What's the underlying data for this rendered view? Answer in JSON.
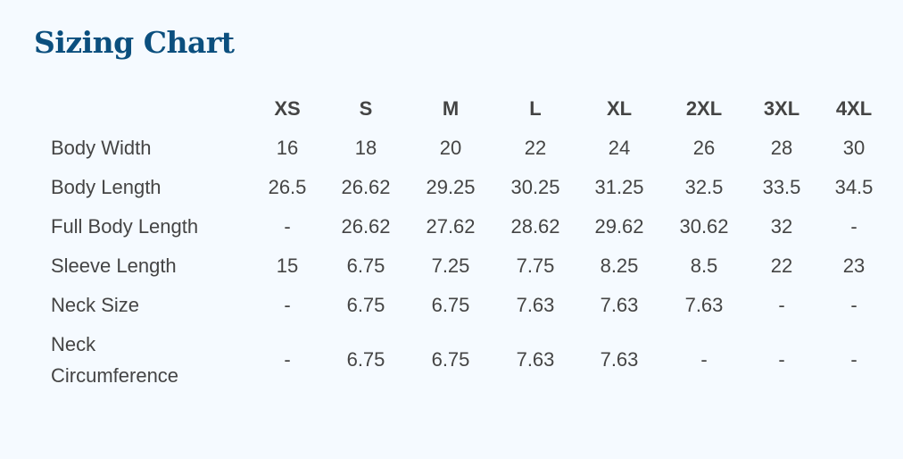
{
  "title": "Sizing Chart",
  "colors": {
    "title": "#0b4f7e",
    "text": "#444444",
    "background": "#f5faff"
  },
  "sizes": [
    "XS",
    "S",
    "M",
    "L",
    "XL",
    "2XL",
    "3XL",
    "4XL"
  ],
  "rows": [
    {
      "label": "Body Width",
      "values": [
        "16",
        "18",
        "20",
        "22",
        "24",
        "26",
        "28",
        "30"
      ]
    },
    {
      "label": "Body Length",
      "values": [
        "26.5",
        "26.62",
        "29.25",
        "30.25",
        "31.25",
        "32.5",
        "33.5",
        "34.5"
      ]
    },
    {
      "label": "Full Body Length",
      "values": [
        "-",
        "26.62",
        "27.62",
        "28.62",
        "29.62",
        "30.62",
        "32",
        "-"
      ]
    },
    {
      "label": "Sleeve Length",
      "values": [
        "15",
        "6.75",
        "7.25",
        "7.75",
        "8.25",
        "8.5",
        "22",
        "23"
      ]
    },
    {
      "label": "Neck Size",
      "values": [
        "-",
        "6.75",
        "6.75",
        "7.63",
        "7.63",
        "7.63",
        "-",
        "-"
      ]
    },
    {
      "label": "Neck Circumference",
      "values": [
        "-",
        "6.75",
        "6.75",
        "7.63",
        "7.63",
        "-",
        "-",
        "-"
      ]
    }
  ]
}
